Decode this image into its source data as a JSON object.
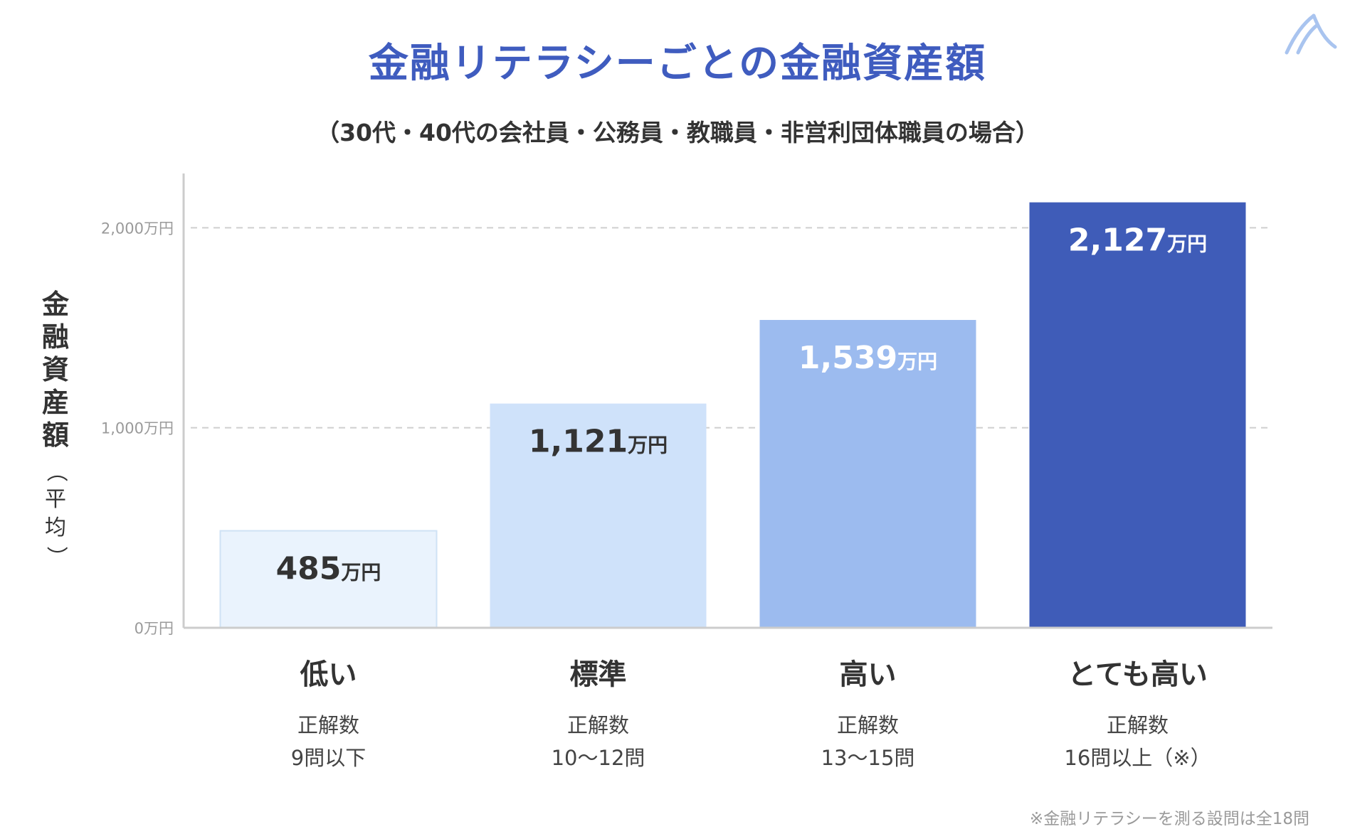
{
  "title": "金融リテラシーごとの金融資産額",
  "subtitle": "（30代・40代の会社員・公務員・教職員・非営利団体職員の場合）",
  "ylabel_main": [
    "金",
    "融",
    "資",
    "産",
    "額"
  ],
  "ylabel_sub": [
    "（",
    "平",
    "均",
    "）"
  ],
  "footnote": "※金融リテラシーを測る設問は全18問",
  "unit": "万円",
  "colors": {
    "title": "#3f5cbf",
    "bars": [
      "#eaf3fd",
      "#cfe2fa",
      "#9cbbef",
      "#3f5cb8"
    ],
    "bar_label_text": [
      "#333333",
      "#333333",
      "#ffffff",
      "#ffffff"
    ],
    "axis": "#cccccc",
    "grid": "#cfcfcf"
  },
  "chart_data": {
    "type": "bar",
    "categories": [
      "低い",
      "標準",
      "高い",
      "とても高い"
    ],
    "category_details": [
      [
        "正解数",
        "9問以下"
      ],
      [
        "正解数",
        "10〜12問"
      ],
      [
        "正解数",
        "13〜15問"
      ],
      [
        "正解数",
        "16問以上（※）"
      ]
    ],
    "values": [
      485,
      1121,
      1539,
      2127
    ],
    "value_labels": [
      "485",
      "1,121",
      "1,539",
      "2,127"
    ],
    "ylim": [
      0,
      2250
    ],
    "yticks": [
      0,
      1000,
      2000
    ],
    "ytick_labels": [
      "0万円",
      "1,000万円",
      "2,000万円"
    ],
    "grid": true
  }
}
